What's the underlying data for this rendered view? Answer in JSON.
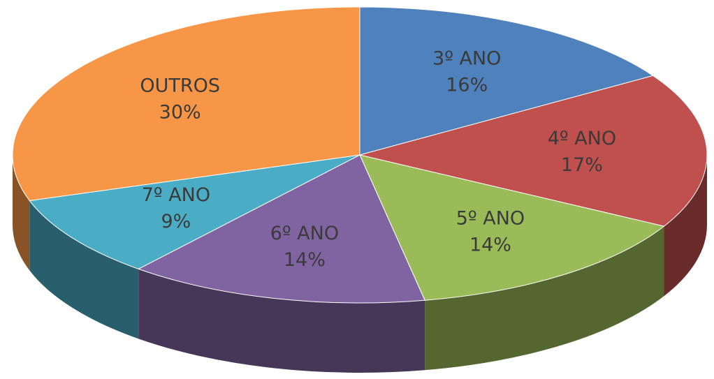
{
  "chart_data": {
    "type": "pie",
    "categories": [
      "3º ANO",
      "4º ANO",
      "5º ANO",
      "6º ANO",
      "7º ANO",
      "OUTROS"
    ],
    "values": [
      16,
      17,
      14,
      14,
      9,
      30
    ],
    "value_labels": [
      "16%",
      "17%",
      "14%",
      "14%",
      "9%",
      "30%"
    ],
    "colors": [
      "#4f81bd",
      "#c0504d",
      "#9bbb59",
      "#8064a2",
      "#4bacc6",
      "#f79646"
    ]
  }
}
